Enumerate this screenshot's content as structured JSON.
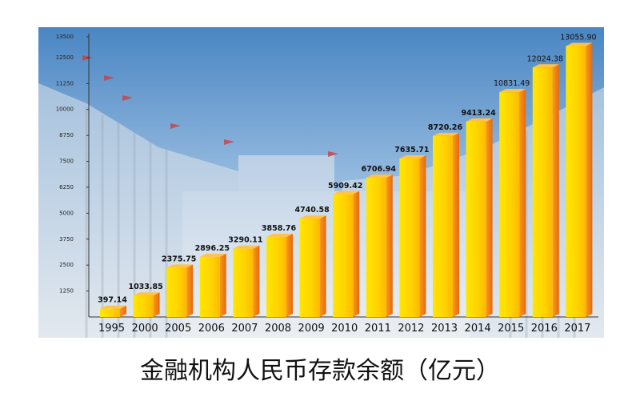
{
  "chart_data": {
    "type": "bar",
    "title": "金融机构人民币存款余额（亿元）",
    "categories": [
      "1995",
      "2000",
      "2005",
      "2006",
      "2007",
      "2008",
      "2009",
      "2010",
      "2011",
      "2012",
      "2013",
      "2014",
      "2015",
      "2016",
      "2017"
    ],
    "values": [
      397.14,
      1033.85,
      2375.75,
      2896.25,
      3290.11,
      3858.76,
      4740.58,
      5909.42,
      6706.94,
      7635.71,
      8720.26,
      9413.24,
      10831.49,
      12024.38,
      13055.9
    ],
    "value_labels": [
      "397.14",
      "1033.85",
      "2375.75",
      "2896.25",
      "3290.11",
      "3858.76",
      "4740.58",
      "5909.42",
      "6706.94",
      "7635.71",
      "8720.26",
      "9413.24",
      "10831.49",
      "12024.38",
      "13055.90"
    ],
    "y_ticks": [
      "1250",
      "2500",
      "3750",
      "5000",
      "6250",
      "7500",
      "8750",
      "10000",
      "11250",
      "12500",
      "13500"
    ],
    "ylim": [
      0,
      13500
    ],
    "grid": false,
    "legend": "none",
    "colors": {
      "bar_front": "#ffd400",
      "bar_side": "#f07f10",
      "bar_top": "#ffc24a",
      "sky_top": "#3f7fbf",
      "sky_bottom": "#dfe9f3"
    }
  }
}
